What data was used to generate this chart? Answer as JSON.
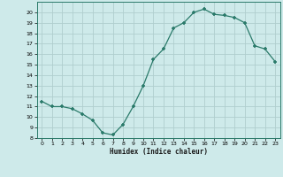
{
  "x": [
    0,
    1,
    2,
    3,
    4,
    5,
    6,
    7,
    8,
    9,
    10,
    11,
    12,
    13,
    14,
    15,
    16,
    17,
    18,
    19,
    20,
    21,
    22,
    23
  ],
  "y": [
    11.5,
    11.0,
    11.0,
    10.8,
    10.3,
    9.7,
    8.5,
    8.3,
    9.3,
    11.0,
    13.0,
    15.5,
    16.5,
    18.5,
    19.0,
    20.0,
    20.3,
    19.8,
    19.7,
    19.5,
    19.0,
    16.8,
    16.5,
    15.3
  ],
  "xlabel": "Humidex (Indice chaleur)",
  "bg_color": "#ceeaea",
  "line_color": "#2a7a6a",
  "marker_color": "#2a7a6a",
  "grid_color": "#b0cece",
  "xlim": [
    -0.5,
    23.5
  ],
  "ylim": [
    8,
    21
  ],
  "yticks": [
    8,
    9,
    10,
    11,
    12,
    13,
    14,
    15,
    16,
    17,
    18,
    19,
    20
  ],
  "xticks": [
    0,
    1,
    2,
    3,
    4,
    5,
    6,
    7,
    8,
    9,
    10,
    11,
    12,
    13,
    14,
    15,
    16,
    17,
    18,
    19,
    20,
    21,
    22,
    23
  ]
}
